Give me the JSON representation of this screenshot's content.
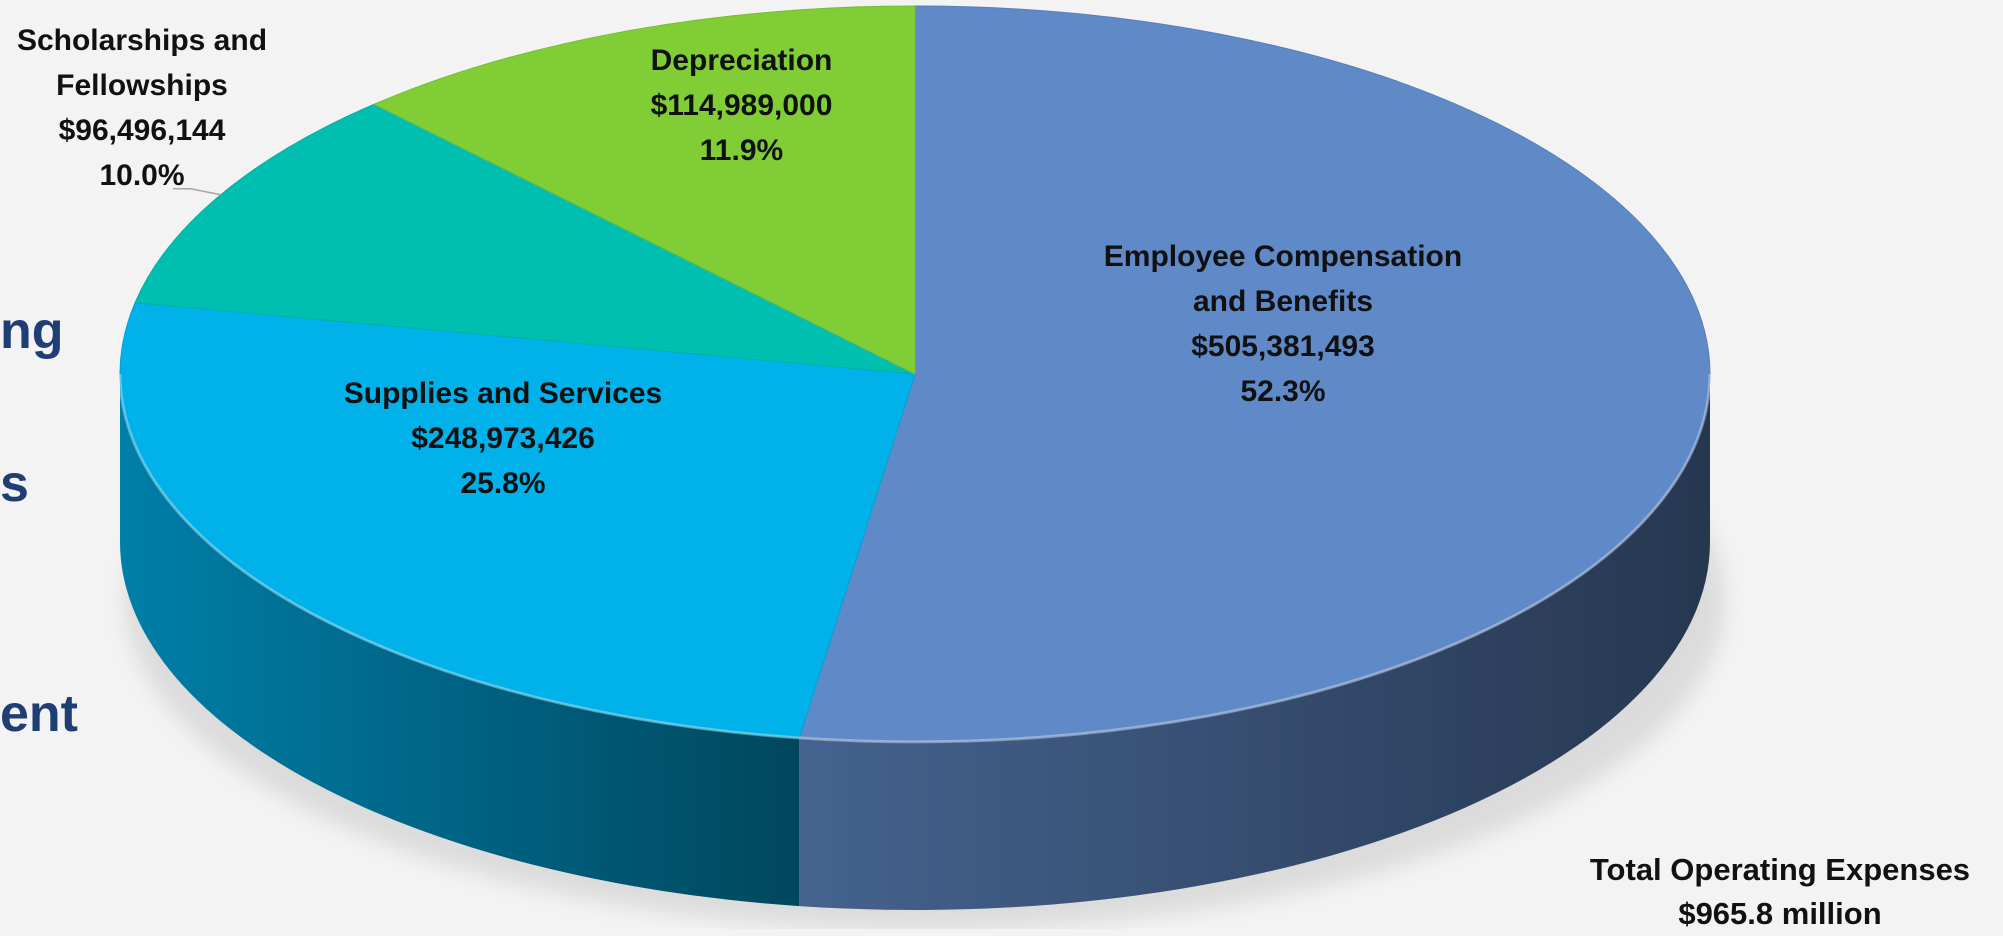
{
  "side_fragments": [
    "ng",
    "s",
    "ent"
  ],
  "chart_data": {
    "type": "pie",
    "title": "",
    "style": "3d",
    "legend": "none",
    "slices": [
      {
        "name": "Employee Compensation and Benefits",
        "label_lines": [
          "Employee Compensation",
          "and Benefits"
        ],
        "value_label": "$505,381,493",
        "pct_label": "52.3%",
        "value": 505381493,
        "pct": 52.3,
        "color": "#6089c7"
      },
      {
        "name": "Supplies and Services",
        "label_lines": [
          "Supplies and Services"
        ],
        "value_label": "$248,973,426",
        "pct_label": "25.8%",
        "value": 248973426,
        "pct": 25.8,
        "color": "#00b1ea"
      },
      {
        "name": "Scholarships and Fellowships",
        "label_lines": [
          "Scholarships and",
          "Fellowships"
        ],
        "value_label": "$96,496,144",
        "pct_label": "10.0%",
        "value": 96496144,
        "pct": 10.0,
        "color": "#00bfb1"
      },
      {
        "name": "Depreciation",
        "label_lines": [
          "Depreciation"
        ],
        "value_label": "$114,989,000",
        "pct_label": "11.9%",
        "value": 114989000,
        "pct": 11.9,
        "color": "#80cd36"
      }
    ],
    "total": {
      "label": "Total Operating Expenses",
      "value_label": "$965.8 million"
    }
  }
}
